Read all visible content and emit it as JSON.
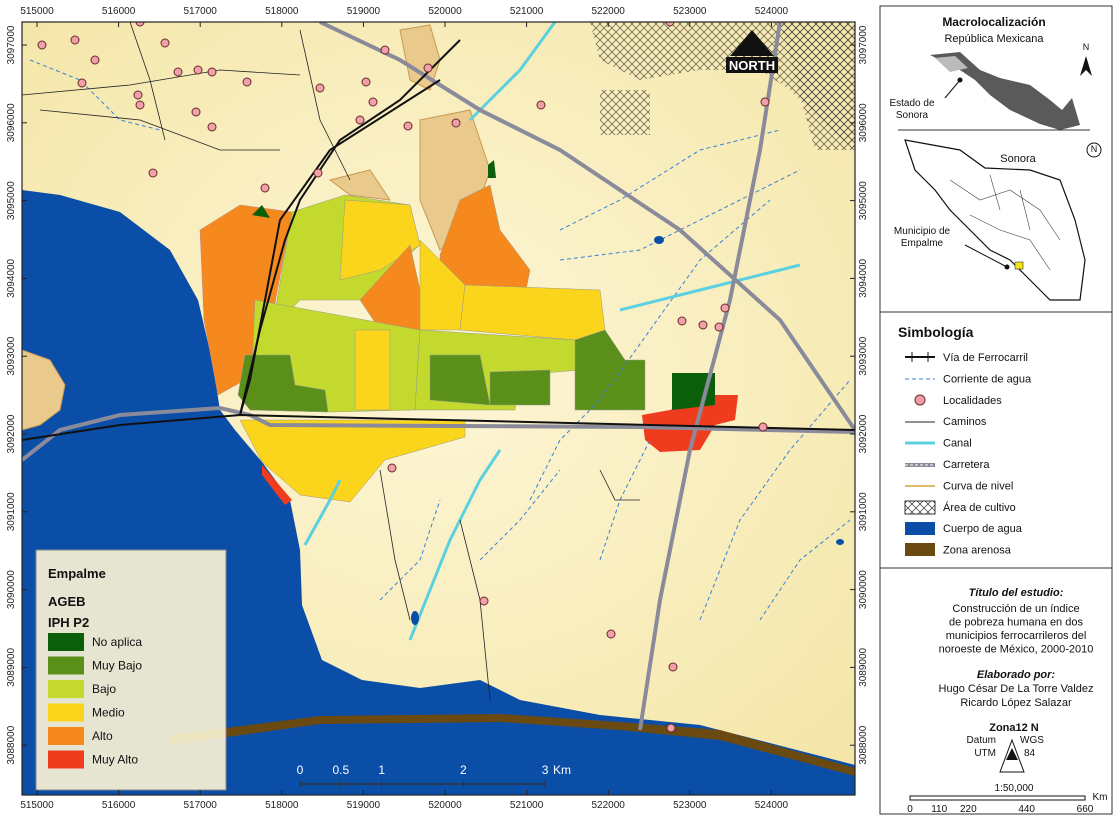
{
  "map": {
    "north": "NORTH",
    "x_coords": [
      "515000",
      "516000",
      "517000",
      "518000",
      "519000",
      "520000",
      "521000",
      "522000",
      "523000",
      "524000"
    ],
    "y_coords": [
      "3097000",
      "3096000",
      "3095000",
      "3094000",
      "3093000",
      "3092000",
      "3091000",
      "3090000",
      "3089000",
      "3088000"
    ],
    "legend": {
      "title": "Empalme",
      "subtitle": "AGEB",
      "index": "IPH P2",
      "classes": [
        {
          "label": "No aplica",
          "color": "#0b5f0b"
        },
        {
          "label": "Muy Bajo",
          "color": "#5a8f1a"
        },
        {
          "label": "Bajo",
          "color": "#c3d92e"
        },
        {
          "label": "Medio",
          "color": "#fbd51c"
        },
        {
          "label": "Alto",
          "color": "#f5891d"
        },
        {
          "label": "Muy Alto",
          "color": "#ef3b1e"
        }
      ]
    },
    "scale": {
      "labels": [
        "0",
        "0.5",
        "1",
        "2",
        "3"
      ],
      "unit": "Km"
    }
  },
  "panel": {
    "macro_title": "Macrolocalización",
    "country": "República Mexicana",
    "north": "N",
    "state_label": [
      "Estado de",
      "Sonora"
    ],
    "state_title": "Sonora",
    "municipality_label": [
      "Municipio de",
      "Empalme"
    ],
    "symbology": {
      "title": "Simbología",
      "items": [
        "Vía de Ferrocarril",
        "Corriente de agua",
        "Localidades",
        "Caminos",
        "Canal",
        "Carretera",
        "Curva de nivel",
        "Área de cultivo",
        "Cuerpo de agua",
        "Zona arenosa"
      ]
    },
    "study": {
      "heading": "Título del estudio:",
      "lines": [
        "Construcción de un índice",
        "de pobreza humana en dos",
        "municipios  ferrocarrileros del",
        "noroeste de México, 2000-2010"
      ]
    },
    "authors": {
      "heading": "Elaborado por:",
      "names": [
        "Hugo César De La Torre Valdez",
        "Ricardo López Salazar"
      ]
    },
    "projection": {
      "zone": "Zona12 N",
      "datum": "Datum",
      "utm": "UTM",
      "wgs": "WGS",
      "wgs_num": "84"
    },
    "scale": {
      "ratio": "1:50,000",
      "labels": [
        "0",
        "110",
        "220",
        "440",
        "660"
      ],
      "unit": "Km"
    }
  }
}
